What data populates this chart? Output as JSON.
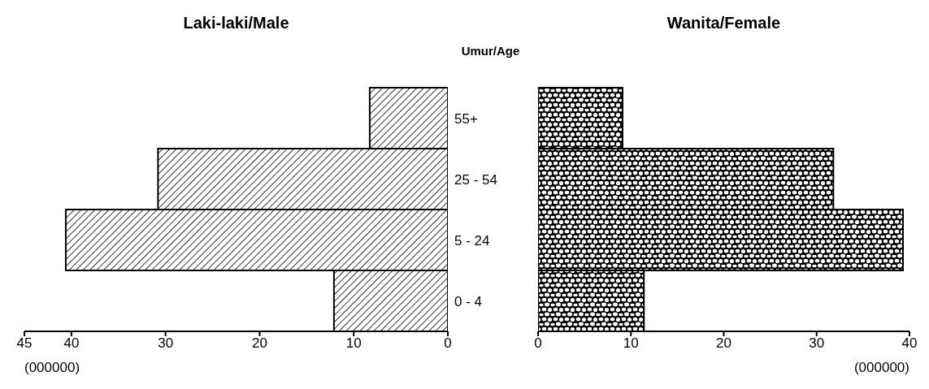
{
  "chart_data": [
    {
      "type": "bar",
      "orientation": "horizontal",
      "title": "Laki-laki/Male",
      "ylabel": "Umur/Age",
      "xlabel": "(000000)",
      "categories": [
        "55+",
        "25 - 54",
        "5 - 24",
        "0 - 4"
      ],
      "values": [
        8.3,
        30.8,
        40.6,
        12.1
      ],
      "color": "#000000",
      "xlim": [
        45,
        0
      ],
      "xticks": [
        45,
        40,
        30,
        20,
        10,
        0
      ]
    },
    {
      "type": "bar",
      "orientation": "horizontal",
      "title": "Wanita/Female",
      "xlabel": "(000000)",
      "categories": [
        null,
        null,
        null,
        null
      ],
      "values": [
        9.1,
        31.8,
        39.3,
        11.4
      ],
      "color": "#000000",
      "xlim": [
        0,
        40
      ],
      "xticks": [
        0,
        10,
        20,
        30,
        40
      ],
      "tick_labels": "x"
    }
  ]
}
